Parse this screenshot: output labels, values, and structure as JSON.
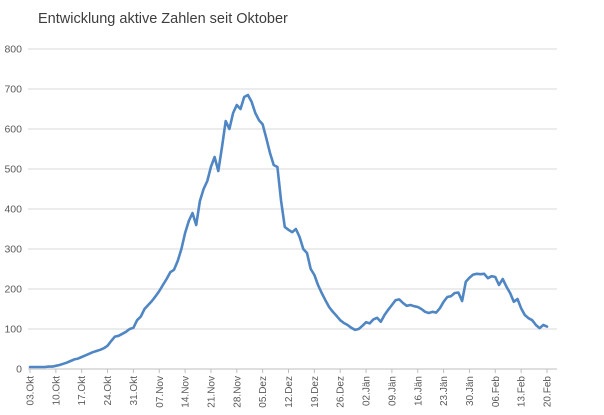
{
  "chart_data": {
    "type": "line",
    "title": "Entwicklung aktive Zahlen seit Oktober",
    "xlabel": "",
    "ylabel": "",
    "ylim": [
      0,
      800
    ],
    "y_ticks": [
      0,
      100,
      200,
      300,
      400,
      500,
      600,
      700,
      800
    ],
    "x_labels": [
      "03.Okt",
      "10.Okt",
      "17.Okt",
      "24.Okt",
      "31.Okt",
      "07.Nov",
      "14.Nov",
      "21.Nov",
      "28.Nov",
      "05.Dez",
      "12.Dez",
      "19.Dez",
      "26.Dez",
      "02.Jän",
      "09.Jän",
      "16.Jän",
      "23.Jän",
      "30.Jän",
      "06.Feb",
      "13.Feb",
      "20.Feb"
    ],
    "points_per_label": 7,
    "values": [
      5,
      5,
      5,
      5,
      5,
      6,
      6,
      8,
      10,
      13,
      16,
      20,
      24,
      26,
      30,
      34,
      38,
      42,
      45,
      48,
      52,
      58,
      70,
      81,
      83,
      88,
      93,
      100,
      103,
      122,
      131,
      150,
      160,
      170,
      182,
      195,
      210,
      225,
      242,
      248,
      270,
      300,
      340,
      370,
      390,
      360,
      420,
      450,
      470,
      505,
      530,
      495,
      555,
      620,
      600,
      640,
      660,
      650,
      680,
      685,
      668,
      640,
      622,
      612,
      577,
      540,
      510,
      505,
      420,
      355,
      348,
      342,
      350,
      330,
      300,
      290,
      250,
      235,
      210,
      190,
      172,
      155,
      143,
      133,
      122,
      115,
      110,
      103,
      98,
      100,
      108,
      117,
      114,
      124,
      128,
      118,
      135,
      148,
      160,
      172,
      174,
      165,
      158,
      160,
      157,
      155,
      150,
      143,
      140,
      143,
      141,
      152,
      168,
      180,
      182,
      190,
      191,
      170,
      218,
      228,
      236,
      238,
      237,
      238,
      227,
      232,
      230,
      210,
      225,
      206,
      190,
      168,
      175,
      152,
      135,
      127,
      122,
      110,
      102,
      110,
      106
    ],
    "grid": "horizontal",
    "legend": "none",
    "line_color": "#4f86c3",
    "grid_color": "#d9d9d9",
    "axis_color": "#bfbfbf",
    "label_color": "#595959",
    "title_color": "#3d3d3d",
    "background": "#ffffff"
  }
}
